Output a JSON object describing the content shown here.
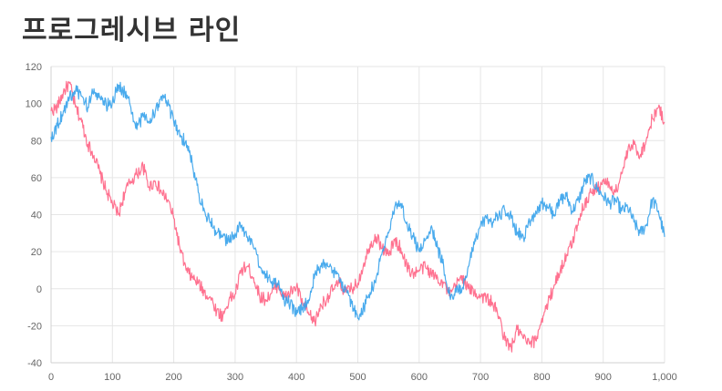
{
  "page": {
    "title": "프로그레시브 라인"
  },
  "chart_data": {
    "type": "line",
    "title": "",
    "xlabel": "",
    "ylabel": "",
    "xlim": [
      0,
      1000
    ],
    "ylim": [
      -40,
      120
    ],
    "grid": true,
    "x_ticks": [
      "0",
      "100",
      "200",
      "300",
      "400",
      "500",
      "600",
      "700",
      "800",
      "900",
      "1,000"
    ],
    "y_ticks": [
      "120",
      "100",
      "80",
      "60",
      "40",
      "20",
      "0",
      "-20",
      "-40"
    ],
    "series": [
      {
        "color": "#ff6384",
        "x": [
          0,
          10,
          20,
          30,
          40,
          50,
          60,
          70,
          80,
          90,
          100,
          110,
          120,
          130,
          140,
          150,
          160,
          170,
          180,
          190,
          200,
          210,
          220,
          230,
          240,
          250,
          260,
          270,
          280,
          290,
          300,
          310,
          320,
          330,
          340,
          350,
          360,
          370,
          380,
          390,
          400,
          410,
          420,
          430,
          440,
          450,
          460,
          470,
          480,
          490,
          500,
          510,
          520,
          530,
          540,
          550,
          560,
          570,
          580,
          590,
          600,
          610,
          620,
          630,
          640,
          650,
          660,
          670,
          680,
          690,
          700,
          710,
          720,
          730,
          740,
          750,
          760,
          770,
          780,
          790,
          800,
          810,
          820,
          830,
          840,
          850,
          860,
          870,
          880,
          890,
          900,
          910,
          920,
          930,
          940,
          950,
          960,
          970,
          980,
          990,
          1000
        ],
        "y": [
          96,
          98,
          106,
          111,
          98,
          90,
          78,
          72,
          62,
          53,
          46,
          40,
          52,
          58,
          62,
          66,
          55,
          58,
          52,
          48,
          38,
          22,
          10,
          6,
          3,
          -2,
          -5,
          -12,
          -15,
          -6,
          -3,
          10,
          12,
          6,
          -4,
          -6,
          -2,
          2,
          -5,
          -2,
          1,
          -8,
          -14,
          -18,
          -9,
          -5,
          0,
          3,
          -2,
          0,
          3,
          14,
          24,
          28,
          22,
          18,
          26,
          22,
          12,
          8,
          10,
          12,
          8,
          6,
          3,
          -4,
          2,
          7,
          0,
          -2,
          -4,
          -5,
          -8,
          -15,
          -28,
          -32,
          -22,
          -27,
          -30,
          -28,
          -16,
          -8,
          2,
          10,
          18,
          25,
          38,
          46,
          52,
          54,
          58,
          56,
          52,
          62,
          74,
          78,
          72,
          80,
          92,
          98,
          90
        ]
      },
      {
        "color": "#36a2eb",
        "x": [
          0,
          10,
          20,
          30,
          40,
          50,
          60,
          70,
          80,
          90,
          100,
          110,
          120,
          130,
          140,
          150,
          160,
          170,
          180,
          190,
          200,
          210,
          220,
          230,
          240,
          250,
          260,
          270,
          280,
          290,
          300,
          310,
          320,
          330,
          340,
          350,
          360,
          370,
          380,
          390,
          400,
          410,
          420,
          430,
          440,
          450,
          460,
          470,
          480,
          490,
          500,
          510,
          520,
          530,
          540,
          550,
          560,
          570,
          580,
          590,
          600,
          610,
          620,
          630,
          640,
          650,
          660,
          670,
          680,
          690,
          700,
          710,
          720,
          730,
          740,
          750,
          760,
          770,
          780,
          790,
          800,
          810,
          820,
          830,
          840,
          850,
          860,
          870,
          880,
          890,
          900,
          910,
          920,
          930,
          940,
          950,
          960,
          970,
          980,
          990,
          1000
        ],
        "y": [
          82,
          88,
          96,
          103,
          107,
          104,
          98,
          108,
          103,
          99,
          101,
          110,
          106,
          98,
          86,
          94,
          90,
          96,
          104,
          100,
          90,
          82,
          80,
          68,
          52,
          42,
          36,
          30,
          28,
          25,
          30,
          34,
          28,
          22,
          12,
          8,
          4,
          2,
          -6,
          -8,
          -14,
          -10,
          -6,
          8,
          12,
          14,
          10,
          4,
          0,
          -8,
          -16,
          -10,
          -2,
          6,
          20,
          30,
          44,
          46,
          36,
          28,
          20,
          26,
          34,
          22,
          12,
          -4,
          -2,
          0,
          12,
          24,
          34,
          38,
          36,
          40,
          42,
          38,
          30,
          28,
          36,
          42,
          46,
          44,
          40,
          48,
          50,
          42,
          48,
          58,
          60,
          54,
          50,
          46,
          48,
          42,
          44,
          36,
          30,
          34,
          48,
          42,
          28
        ]
      }
    ]
  }
}
